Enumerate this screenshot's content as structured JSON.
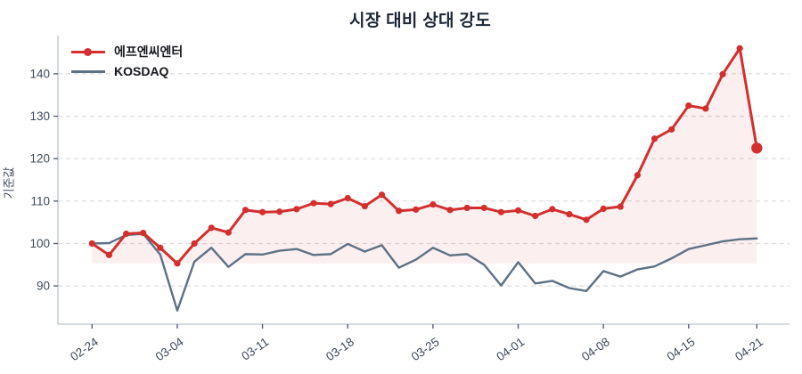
{
  "chart": {
    "title": "시장 대비 상대 강도",
    "ylabel": "기준값"
  },
  "chart_data": {
    "type": "line",
    "title": "시장 대비 상대 강도",
    "xlabel": "",
    "ylabel": "기준값",
    "grid": "horizontal-dashed",
    "legend_position": "top-left",
    "ylim": [
      81,
      149
    ],
    "yticks": [
      90,
      100,
      110,
      120,
      130,
      140
    ],
    "x_tick_labels": [
      "02-24",
      "03-04",
      "03-11",
      "03-18",
      "03-25",
      "04-01",
      "04-08",
      "04-15",
      "04-21"
    ],
    "x_tick_indices": [
      0,
      5,
      10,
      15,
      20,
      25,
      30,
      35,
      39
    ],
    "x": [
      "02-24",
      "02-25",
      "02-26",
      "02-27",
      "02-28",
      "03-04",
      "03-05",
      "03-06",
      "03-07",
      "03-10",
      "03-11",
      "03-12",
      "03-13",
      "03-14",
      "03-17",
      "03-18",
      "03-19",
      "03-20",
      "03-21",
      "03-24",
      "03-25",
      "03-26",
      "03-27",
      "03-28",
      "03-31",
      "04-01",
      "04-02",
      "04-03",
      "04-04",
      "04-07",
      "04-08",
      "04-09",
      "04-10",
      "04-11",
      "04-14",
      "04-15",
      "04-16",
      "04-17",
      "04-18",
      "04-21"
    ],
    "series": [
      {
        "name": "에프엔씨엔터",
        "color": "#d32f2f",
        "marker": "circle",
        "fill_to_min": true,
        "values": [
          100.0,
          97.3,
          102.3,
          102.5,
          99.0,
          95.3,
          100.0,
          103.7,
          102.6,
          107.9,
          107.4,
          107.5,
          108.1,
          109.5,
          109.3,
          110.7,
          108.8,
          111.5,
          107.7,
          108.0,
          109.2,
          107.9,
          108.4,
          108.4,
          107.4,
          107.8,
          106.5,
          108.1,
          106.9,
          105.6,
          108.2,
          108.7,
          116.1,
          124.7,
          126.9,
          132.5,
          131.8,
          139.9,
          146.0,
          122.5
        ]
      },
      {
        "name": "KOSDAQ",
        "color": "#5d7185",
        "marker": "none",
        "fill_to_min": false,
        "values": [
          100.0,
          100.1,
          102.0,
          102.3,
          97.4,
          84.2,
          95.7,
          99.0,
          94.5,
          97.5,
          97.4,
          98.3,
          98.7,
          97.3,
          97.5,
          99.9,
          98.1,
          99.6,
          94.3,
          96.2,
          99.0,
          97.2,
          97.5,
          95.0,
          90.1,
          95.6,
          90.6,
          91.2,
          89.5,
          88.8,
          93.5,
          92.2,
          93.9,
          94.6,
          96.5,
          98.7,
          99.6,
          100.5,
          101.0,
          101.2
        ]
      }
    ],
    "style_colors": {
      "accent_red": "#d32f2f",
      "accent_slate": "#5d7185",
      "fill_pink_opacity": 0.08,
      "grid": "#dcdcdc",
      "spine": "#c9cfd9",
      "tick_text": "#3f4a5c",
      "title_text": "#1c2636"
    }
  }
}
